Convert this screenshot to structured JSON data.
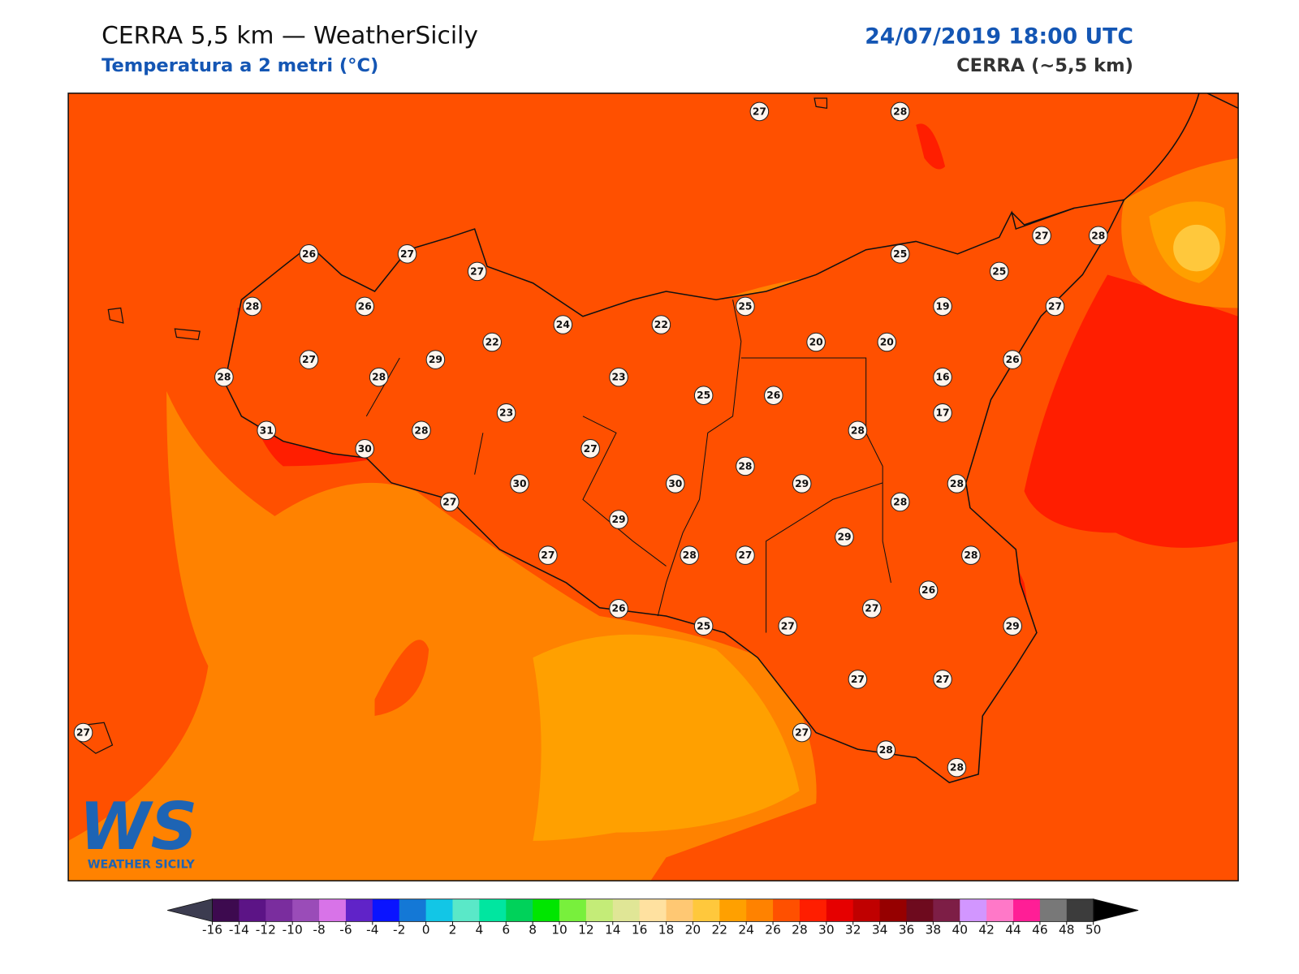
{
  "header": {
    "title": "CERRA 5,5 km — WeatherSicily",
    "subtitle": "Temperatura a 2 metri (°C)",
    "date": "24/07/2019 18:00 UTC",
    "model": "CERRA (~5,5 km)"
  },
  "logo": {
    "text": "WS",
    "name": "WEATHER SICILY"
  },
  "stations": {
    "values": [
      27,
      28,
      26,
      27,
      27,
      28,
      26,
      24,
      22,
      25,
      25,
      27,
      28,
      25,
      19,
      27,
      27,
      28,
      29,
      22,
      20,
      20,
      26,
      28,
      23,
      25,
      26,
      16,
      17,
      23,
      31,
      28,
      30,
      27,
      28,
      28,
      30,
      30,
      29,
      28,
      27,
      28,
      29,
      29,
      27,
      28,
      27,
      28,
      26,
      27,
      26,
      25,
      27,
      29,
      27,
      27,
      27,
      27,
      28,
      28
    ]
  },
  "colorbar": {
    "ticks": [
      -16,
      -14,
      -12,
      -10,
      -8,
      -6,
      -4,
      -2,
      0,
      2,
      4,
      6,
      8,
      10,
      12,
      14,
      16,
      18,
      20,
      22,
      24,
      26,
      28,
      30,
      32,
      34,
      36,
      38,
      40,
      42,
      44,
      46,
      48,
      50
    ],
    "colors": [
      "#3d0a4f",
      "#5c1486",
      "#7a2d9e",
      "#9a4cb8",
      "#d873e8",
      "#6023c8",
      "#0a14ff",
      "#1478d6",
      "#12c6e6",
      "#5ae8c8",
      "#00e6a0",
      "#00d25a",
      "#00e600",
      "#78f03c",
      "#c4ec78",
      "#e0e696",
      "#ffe1a0",
      "#ffc873",
      "#ffc83c",
      "#ffa000",
      "#ff8200",
      "#ff5000",
      "#ff1e00",
      "#e60000",
      "#c00000",
      "#960000",
      "#6e0a1e",
      "#7d1e46",
      "#d296ff",
      "#ff78c8",
      "#ff1e96",
      "#787878",
      "#3c3c3c"
    ],
    "under_color": "#3c3c50",
    "over_color": "#000000"
  }
}
